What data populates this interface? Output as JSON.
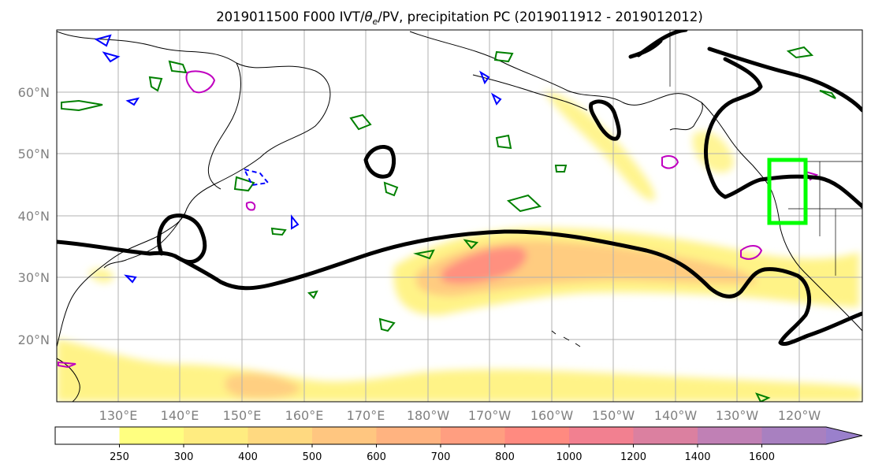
{
  "title": {
    "prefix": "2019011500 F000 IVT/",
    "theta": "θ",
    "theta_sub": "e",
    "suffix": "/PV, precipitation PC (2019011912 - 2019012012)"
  },
  "map": {
    "lat_labels": [
      "60°N",
      "50°N",
      "40°N",
      "30°N",
      "20°N"
    ],
    "lon_labels": [
      "130°E",
      "140°E",
      "150°E",
      "160°E",
      "170°E",
      "180°W",
      "170°W",
      "160°W",
      "150°W",
      "140°W",
      "130°W",
      "120°W"
    ]
  },
  "colorbar": {
    "levels": [
      "250",
      "300",
      "400",
      "500",
      "600",
      "700",
      "800",
      "1000",
      "1200",
      "1400",
      "1600"
    ],
    "colors": [
      "#ffffff",
      "#ffff80",
      "#ffec80",
      "#ffd980",
      "#ffc680",
      "#ffb380",
      "#ff9e80",
      "#ff8a80",
      "#f28090",
      "#db80a0",
      "#c080b5",
      "#a880c0",
      "#9a80cc"
    ]
  },
  "contour_colors": {
    "ivt_line": "#000000",
    "theta_e": "#008000",
    "pv_negative": "#0000ff",
    "pv_positive": "#c000c0",
    "highlight_box": "#00ff00"
  },
  "chart_data": {
    "type": "heatmap",
    "title": "2019011500 F000 IVT/θe/PV, precipitation PC (2019011912 - 2019012012)",
    "x_ticks": [
      "130°E",
      "140°E",
      "150°E",
      "160°E",
      "170°E",
      "180°W",
      "170°W",
      "160°W",
      "150°W",
      "140°W",
      "130°W",
      "120°W"
    ],
    "y_ticks": [
      "60°N",
      "50°N",
      "40°N",
      "30°N",
      "20°N"
    ],
    "colorbar_levels": [
      250,
      300,
      400,
      500,
      600,
      700,
      800,
      1000,
      1200,
      1400,
      1600
    ],
    "colorbar_extend": "max",
    "grid": true
  }
}
